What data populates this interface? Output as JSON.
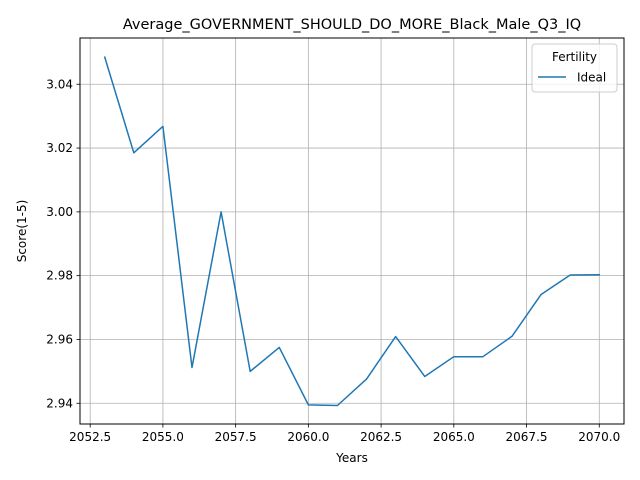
{
  "chart_data": {
    "type": "line",
    "title": "Average_GOVERNMENT_SHOULD_DO_MORE_Black_Male_Q3_IQ",
    "xlabel": "Years",
    "ylabel": "Score(1-5)",
    "xlim": [
      2052.15,
      2070.85
    ],
    "ylim": [
      2.9335,
      3.0545
    ],
    "x_ticks": [
      "2052.5",
      "2055.0",
      "2057.5",
      "2060.0",
      "2062.5",
      "2065.0",
      "2067.5",
      "2070.0"
    ],
    "y_ticks": [
      "2.94",
      "2.96",
      "2.98",
      "3.00",
      "3.02",
      "3.04"
    ],
    "grid": true,
    "legend": {
      "title": "Fertility",
      "placement": "top-right"
    },
    "series": [
      {
        "name": "Ideal",
        "color": "#1f77b4",
        "x": [
          2053,
          2054,
          2055,
          2056,
          2057,
          2058,
          2059,
          2060,
          2061,
          2062,
          2063,
          2064,
          2065,
          2066,
          2067,
          2068,
          2069,
          2070
        ],
        "y": [
          3.0485,
          3.0185,
          3.0268,
          2.9512,
          3.0,
          2.95,
          2.9575,
          2.9395,
          2.9393,
          2.9476,
          2.9609,
          2.9484,
          2.9546,
          2.9546,
          2.961,
          2.9741,
          2.9802,
          2.9803
        ]
      }
    ]
  }
}
